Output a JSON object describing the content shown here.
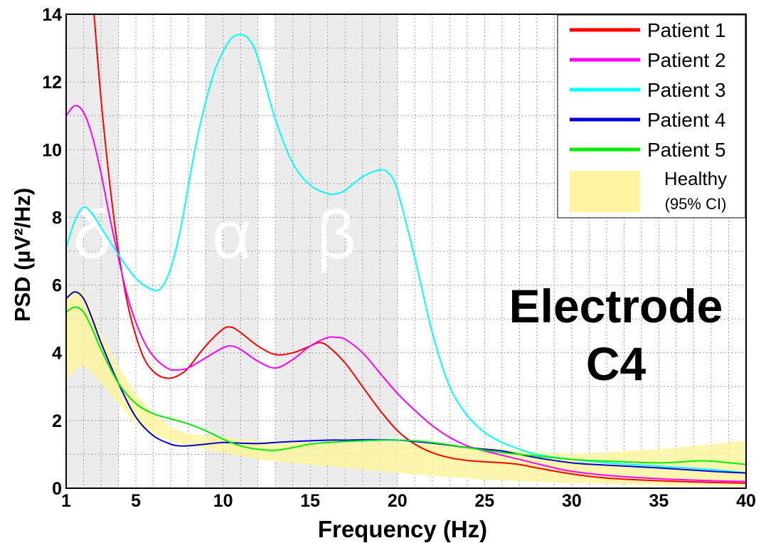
{
  "chart_data": {
    "type": "line",
    "xlabel": "Frequency (Hz)",
    "ylabel": "PSD (µV²/Hz)",
    "xlim": [
      1,
      40
    ],
    "ylim": [
      0,
      14
    ],
    "x_ticks": [
      1,
      5,
      10,
      15,
      20,
      25,
      30,
      35,
      40
    ],
    "y_ticks": [
      0,
      2,
      4,
      6,
      8,
      10,
      12,
      14
    ],
    "grid": true,
    "grid_style": "dotted",
    "legend_position": "top-right",
    "annotation": [
      "Electrode",
      "C4"
    ],
    "bands": [
      {
        "label": "δ",
        "x_range": [
          1,
          4
        ],
        "color": "#ececec"
      },
      {
        "label": "α",
        "x_range": [
          9,
          12
        ],
        "color": "#ececec"
      },
      {
        "label": "β",
        "x_range": [
          13,
          20
        ],
        "color": "#ececec"
      }
    ],
    "healthy_band": {
      "name": "Healthy",
      "sublabel": "(95% CI)",
      "color": "#fdf6a0",
      "x": [
        1,
        1.5,
        2,
        2.5,
        3,
        4,
        5,
        6,
        7,
        8,
        10,
        12,
        15,
        20,
        25,
        30,
        35,
        40
      ],
      "lower": [
        3.2,
        3.5,
        3.6,
        3.4,
        3.1,
        2.5,
        1.9,
        1.6,
        1.4,
        1.25,
        1.05,
        0.85,
        0.7,
        0.45,
        0.25,
        0.15,
        0.08,
        0.05
      ],
      "upper": [
        5.6,
        5.9,
        5.8,
        5.2,
        4.6,
        3.6,
        2.8,
        2.2,
        1.8,
        1.6,
        1.5,
        1.4,
        1.35,
        1.35,
        1.2,
        1.0,
        1.15,
        1.4
      ]
    },
    "series": [
      {
        "name": "Patient 1",
        "color": "#ff0000",
        "x": [
          2.6,
          3.0,
          3.5,
          4.0,
          4.5,
          5.0,
          5.5,
          6.0,
          6.5,
          7.0,
          7.5,
          8.0,
          9.0,
          10.0,
          10.5,
          11.0,
          12.0,
          13.0,
          14.0,
          15.0,
          15.5,
          16.0,
          17.0,
          18.0,
          19.0,
          20.0,
          21.0,
          22.0,
          23.0,
          24.0,
          25.0,
          26.0,
          27.0,
          28.0,
          30.0,
          32.0,
          35.0,
          38.0,
          40.0
        ],
        "y": [
          14.0,
          11.5,
          9.0,
          7.0,
          5.5,
          4.5,
          3.8,
          3.45,
          3.28,
          3.25,
          3.35,
          3.55,
          4.2,
          4.7,
          4.75,
          4.6,
          4.2,
          3.95,
          4.0,
          4.2,
          4.3,
          4.2,
          3.7,
          3.0,
          2.3,
          1.7,
          1.3,
          1.05,
          0.9,
          0.82,
          0.78,
          0.75,
          0.7,
          0.6,
          0.42,
          0.3,
          0.22,
          0.17,
          0.15
        ]
      },
      {
        "name": "Patient 2",
        "color": "#ff00ff",
        "x": [
          1.0,
          1.5,
          2.0,
          2.5,
          3.0,
          3.5,
          4.0,
          4.5,
          5.0,
          5.5,
          6.0,
          6.5,
          7.0,
          7.5,
          8.0,
          9.0,
          10.0,
          10.5,
          11.0,
          12.0,
          13.0,
          14.0,
          15.0,
          16.0,
          16.5,
          17.0,
          18.0,
          19.0,
          20.0,
          21.0,
          22.0,
          23.0,
          24.0,
          25.0,
          27.0,
          29.0,
          30.0,
          32.0,
          35.0,
          38.0,
          40.0
        ],
        "y": [
          11.0,
          11.3,
          11.1,
          10.4,
          9.3,
          8.0,
          6.8,
          5.7,
          4.9,
          4.3,
          3.9,
          3.65,
          3.5,
          3.5,
          3.55,
          3.85,
          4.15,
          4.2,
          4.1,
          3.75,
          3.55,
          3.8,
          4.2,
          4.45,
          4.45,
          4.4,
          4.0,
          3.4,
          2.8,
          2.3,
          1.85,
          1.5,
          1.25,
          1.1,
          0.85,
          0.6,
          0.5,
          0.38,
          0.28,
          0.22,
          0.2
        ]
      },
      {
        "name": "Patient 3",
        "color": "#00ffff",
        "x": [
          1.0,
          1.5,
          2.0,
          2.5,
          3.0,
          3.5,
          4.0,
          5.0,
          6.0,
          6.5,
          7.0,
          7.5,
          8.0,
          8.5,
          9.0,
          9.5,
          10.0,
          10.5,
          11.0,
          11.5,
          12.0,
          13.0,
          14.0,
          15.0,
          16.0,
          16.5,
          17.0,
          18.0,
          19.0,
          19.5,
          20.0,
          21.0,
          22.0,
          23.0,
          24.0,
          25.0,
          26.0,
          27.0,
          28.0,
          30.0,
          32.0,
          35.0,
          38.0,
          40.0
        ],
        "y": [
          7.1,
          7.9,
          8.3,
          8.1,
          7.7,
          7.3,
          6.9,
          6.2,
          5.85,
          5.95,
          6.5,
          7.5,
          8.9,
          10.3,
          11.4,
          12.3,
          12.9,
          13.3,
          13.4,
          13.25,
          12.7,
          10.9,
          9.6,
          8.95,
          8.7,
          8.7,
          8.8,
          9.2,
          9.4,
          9.3,
          8.8,
          6.8,
          4.6,
          3.0,
          2.15,
          1.65,
          1.35,
          1.15,
          1.0,
          0.85,
          0.75,
          0.65,
          0.55,
          0.45
        ]
      },
      {
        "name": "Patient 4",
        "color": "#0000dd",
        "x": [
          1.0,
          1.5,
          2.0,
          2.5,
          3.0,
          4.0,
          5.0,
          6.0,
          7.0,
          7.5,
          8.0,
          9.0,
          10.0,
          11.0,
          12.0,
          13.0,
          14.0,
          15.0,
          16.0,
          17.0,
          18.0,
          19.0,
          20.0,
          21.0,
          22.0,
          23.0,
          24.0,
          25.0,
          26.0,
          27.0,
          28.0,
          30.0,
          32.0,
          35.0,
          38.0,
          40.0
        ],
        "y": [
          5.6,
          5.8,
          5.6,
          5.0,
          4.3,
          3.1,
          2.1,
          1.55,
          1.3,
          1.25,
          1.25,
          1.3,
          1.35,
          1.33,
          1.32,
          1.35,
          1.38,
          1.4,
          1.42,
          1.42,
          1.43,
          1.43,
          1.42,
          1.38,
          1.33,
          1.27,
          1.2,
          1.15,
          1.1,
          1.0,
          0.9,
          0.75,
          0.68,
          0.6,
          0.5,
          0.45
        ]
      },
      {
        "name": "Patient 5",
        "color": "#00ee00",
        "x": [
          1.0,
          1.5,
          2.0,
          2.5,
          3.0,
          4.0,
          5.0,
          6.0,
          7.0,
          8.0,
          9.0,
          10.0,
          11.0,
          12.0,
          13.0,
          14.0,
          15.0,
          16.0,
          17.0,
          18.0,
          19.0,
          20.0,
          21.0,
          22.0,
          23.0,
          24.0,
          25.0,
          26.0,
          27.0,
          28.0,
          30.0,
          32.0,
          35.0,
          37.0,
          38.0,
          40.0
        ],
        "y": [
          5.2,
          5.35,
          5.2,
          4.7,
          4.1,
          3.1,
          2.5,
          2.2,
          2.05,
          1.9,
          1.7,
          1.45,
          1.25,
          1.15,
          1.12,
          1.2,
          1.3,
          1.35,
          1.38,
          1.4,
          1.42,
          1.42,
          1.4,
          1.35,
          1.28,
          1.2,
          1.12,
          1.05,
          1.0,
          0.95,
          0.85,
          0.8,
          0.75,
          0.8,
          0.8,
          0.7
        ]
      }
    ]
  }
}
